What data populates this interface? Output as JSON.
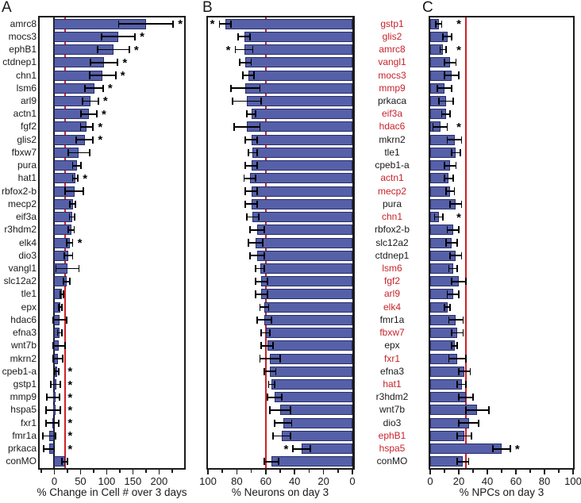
{
  "figure_title": "",
  "sig_marker": "*",
  "colors": {
    "bar_fill": "#5560a8",
    "bar_border": "#272c68",
    "ref_line": "#cc2228",
    "zero_line": "#1a1a1a",
    "red_label": "#c8232c",
    "black_label": "#1a1a1a"
  },
  "chart_data": [
    {
      "panel": "A",
      "type": "bar",
      "orientation": "horizontal",
      "xlabel": "% Change in Cell # over 3 days",
      "xlim": [
        -28,
        248
      ],
      "ticks": [
        0,
        50,
        100,
        150,
        200
      ],
      "minor_ticks": [
        -25,
        25,
        75,
        125,
        175,
        225
      ],
      "ref_line": 20,
      "zero_line": 0,
      "star_min": 30,
      "grid": false,
      "rows": [
        {
          "label": "amrc8",
          "red": false,
          "value": 175,
          "err": 52,
          "sig": true
        },
        {
          "label": "mocs3",
          "red": false,
          "value": 122,
          "err": 32,
          "sig": true
        },
        {
          "label": "ephB1",
          "red": false,
          "value": 113,
          "err": 30,
          "sig": true
        },
        {
          "label": "ctdnep1",
          "red": false,
          "value": 95,
          "err": 26,
          "sig": true
        },
        {
          "label": "chn1",
          "red": false,
          "value": 92,
          "err": 25,
          "sig": true
        },
        {
          "label": "lsm6",
          "red": false,
          "value": 76,
          "err": 17,
          "sig": true
        },
        {
          "label": "arl9",
          "red": false,
          "value": 69,
          "err": 15,
          "sig": true
        },
        {
          "label": "actn1",
          "red": false,
          "value": 66,
          "err": 15,
          "sig": true
        },
        {
          "label": "fgf2",
          "red": false,
          "value": 62,
          "err": 12,
          "sig": true
        },
        {
          "label": "glis2",
          "red": false,
          "value": 58,
          "err": 16,
          "sig": true
        },
        {
          "label": "fbxw7",
          "red": false,
          "value": 47,
          "err": 20,
          "sig": false
        },
        {
          "label": "pura",
          "red": false,
          "value": 43,
          "err": 8,
          "sig": false
        },
        {
          "label": "hat1",
          "red": false,
          "value": 40,
          "err": 5,
          "sig": true
        },
        {
          "label": "rbfox2-b",
          "red": false,
          "value": 38,
          "err": 17,
          "sig": false
        },
        {
          "label": "mecp2",
          "red": false,
          "value": 35,
          "err": 5,
          "sig": false
        },
        {
          "label": "eif3a",
          "red": false,
          "value": 34,
          "err": 5,
          "sig": false
        },
        {
          "label": "r3hdm2",
          "red": false,
          "value": 32,
          "err": 6,
          "sig": false
        },
        {
          "label": "elk4",
          "red": false,
          "value": 29,
          "err": 6,
          "sig": true
        },
        {
          "label": "dio3",
          "red": false,
          "value": 27,
          "err": 8,
          "sig": false
        },
        {
          "label": "vangl1",
          "red": false,
          "value": 25,
          "err": 22,
          "sig": false
        },
        {
          "label": "slc12a2",
          "red": false,
          "value": 24,
          "err": 6,
          "sig": false
        },
        {
          "label": "tle1",
          "red": false,
          "value": 15,
          "err": 3,
          "sig": false
        },
        {
          "label": "epx",
          "red": false,
          "value": 12,
          "err": 3,
          "sig": false
        },
        {
          "label": "hdac6",
          "red": false,
          "value": 10,
          "err": 13,
          "sig": false
        },
        {
          "label": "efna3",
          "red": false,
          "value": 10,
          "err": 4,
          "sig": false
        },
        {
          "label": "wnt7b",
          "red": false,
          "value": 9,
          "err": 11,
          "sig": false
        },
        {
          "label": "mkrn2",
          "red": false,
          "value": 7,
          "err": 9,
          "sig": false
        },
        {
          "label": "cpeb1-a",
          "red": false,
          "value": 5,
          "err": 4,
          "sig": true
        },
        {
          "label": "gstp1",
          "red": false,
          "value": 2,
          "err": 9,
          "sig": true
        },
        {
          "label": "mmp9",
          "red": false,
          "value": -2,
          "err": 12,
          "sig": true
        },
        {
          "label": "hspa5",
          "red": false,
          "value": -2,
          "err": 14,
          "sig": true
        },
        {
          "label": "fxr1",
          "red": false,
          "value": -4,
          "err": 12,
          "sig": true
        },
        {
          "label": "fmr1a",
          "red": false,
          "value": -10,
          "err": 12,
          "sig": true
        },
        {
          "label": "prkaca",
          "red": false,
          "value": -10,
          "err": 10,
          "sig": true
        },
        {
          "label": "conMO",
          "red": false,
          "value": 20,
          "err": 5,
          "sig": false
        }
      ]
    },
    {
      "panel": "B",
      "type": "bar",
      "orientation": "horizontal",
      "xlabel": "% Neurons on day 3",
      "xlim": [
        100,
        0
      ],
      "ticks": [
        100,
        80,
        60,
        40,
        20,
        0
      ],
      "minor_ticks": [
        90,
        70,
        50,
        30,
        10
      ],
      "ref_line": 60,
      "grid": false,
      "rows": [
        {
          "label": "gstp1",
          "red": true,
          "value": 88,
          "err": 4,
          "sig": true
        },
        {
          "label": "glis2",
          "red": true,
          "value": 75,
          "err": 4,
          "sig": false
        },
        {
          "label": "amrc8",
          "red": true,
          "value": 75,
          "err": 6,
          "sig": true
        },
        {
          "label": "vangl1",
          "red": true,
          "value": 74,
          "err": 4,
          "sig": false
        },
        {
          "label": "mocs3",
          "red": true,
          "value": 72,
          "err": 4,
          "sig": false
        },
        {
          "label": "mmp9",
          "red": true,
          "value": 74,
          "err": 10,
          "sig": false
        },
        {
          "label": "prkaca",
          "red": false,
          "value": 73,
          "err": 10,
          "sig": false
        },
        {
          "label": "eif3a",
          "red": true,
          "value": 70,
          "err": 3,
          "sig": false
        },
        {
          "label": "hdac6",
          "red": true,
          "value": 73,
          "err": 9,
          "sig": false
        },
        {
          "label": "mkrn2",
          "red": false,
          "value": 70,
          "err": 4,
          "sig": false
        },
        {
          "label": "tle1",
          "red": false,
          "value": 69,
          "err": 3,
          "sig": false
        },
        {
          "label": "cpeb1-a",
          "red": false,
          "value": 70,
          "err": 4,
          "sig": false
        },
        {
          "label": "actn1",
          "red": true,
          "value": 71,
          "err": 4,
          "sig": false
        },
        {
          "label": "mecp2",
          "red": true,
          "value": 70,
          "err": 4,
          "sig": false
        },
        {
          "label": "pura",
          "red": false,
          "value": 70,
          "err": 4,
          "sig": false
        },
        {
          "label": "chn1",
          "red": true,
          "value": 69,
          "err": 4,
          "sig": false
        },
        {
          "label": "rbfox2-b",
          "red": false,
          "value": 66,
          "err": 5,
          "sig": false
        },
        {
          "label": "slc12a2",
          "red": false,
          "value": 67,
          "err": 5,
          "sig": false
        },
        {
          "label": "ctdnep1",
          "red": false,
          "value": 66,
          "err": 5,
          "sig": false
        },
        {
          "label": "lsm6",
          "red": true,
          "value": 64,
          "err": 3,
          "sig": false
        },
        {
          "label": "fgf2",
          "red": true,
          "value": 63,
          "err": 4,
          "sig": false
        },
        {
          "label": "arl9",
          "red": true,
          "value": 63,
          "err": 4,
          "sig": false
        },
        {
          "label": "elk4",
          "red": true,
          "value": 61,
          "err": 3,
          "sig": false
        },
        {
          "label": "fmr1a",
          "red": false,
          "value": 61,
          "err": 5,
          "sig": false
        },
        {
          "label": "fbxw7",
          "red": true,
          "value": 60,
          "err": 3,
          "sig": false
        },
        {
          "label": "epx",
          "red": false,
          "value": 59,
          "err": 4,
          "sig": false
        },
        {
          "label": "fxr1",
          "red": true,
          "value": 57,
          "err": 7,
          "sig": false
        },
        {
          "label": "efna3",
          "red": false,
          "value": 57,
          "err": 4,
          "sig": false
        },
        {
          "label": "hat1",
          "red": true,
          "value": 56,
          "err": 2,
          "sig": false
        },
        {
          "label": "r3hdm2",
          "red": false,
          "value": 54,
          "err": 5,
          "sig": false
        },
        {
          "label": "wnt7b",
          "red": false,
          "value": 50,
          "err": 7,
          "sig": false
        },
        {
          "label": "dio3",
          "red": false,
          "value": 48,
          "err": 6,
          "sig": false
        },
        {
          "label": "ephB1",
          "red": true,
          "value": 49,
          "err": 6,
          "sig": false
        },
        {
          "label": "hspa5",
          "red": true,
          "value": 35,
          "err": 6,
          "sig": true
        },
        {
          "label": "conMO",
          "red": false,
          "value": 56,
          "err": 5,
          "sig": false
        }
      ]
    },
    {
      "panel": "C",
      "type": "bar",
      "orientation": "horizontal",
      "xlabel": "% NPCs on day 3",
      "xlim": [
        0,
        100
      ],
      "ticks": [
        0,
        20,
        40,
        60,
        80,
        100
      ],
      "minor_ticks": [
        10,
        30,
        50,
        70,
        90
      ],
      "ref_line": 25,
      "star_min": 20,
      "grid": false,
      "rows": [
        {
          "label": "gstp1",
          "red": true,
          "value": 6,
          "err": 2,
          "sig": true
        },
        {
          "label": "glis2",
          "red": true,
          "value": 12,
          "err": 3,
          "sig": false
        },
        {
          "label": "amrc8",
          "red": true,
          "value": 9,
          "err": 2,
          "sig": true
        },
        {
          "label": "vangl1",
          "red": true,
          "value": 14,
          "err": 4,
          "sig": false
        },
        {
          "label": "mocs3",
          "red": true,
          "value": 15,
          "err": 5,
          "sig": false
        },
        {
          "label": "mmp9",
          "red": true,
          "value": 10,
          "err": 5,
          "sig": false
        },
        {
          "label": "prkaca",
          "red": false,
          "value": 11,
          "err": 5,
          "sig": false
        },
        {
          "label": "eif3a",
          "red": true,
          "value": 11,
          "err": 3,
          "sig": false
        },
        {
          "label": "hdac6",
          "red": true,
          "value": 7,
          "err": 5,
          "sig": true
        },
        {
          "label": "mkrn2",
          "red": false,
          "value": 17,
          "err": 5,
          "sig": false
        },
        {
          "label": "tle1",
          "red": false,
          "value": 18,
          "err": 3,
          "sig": false
        },
        {
          "label": "cpeb1-a",
          "red": false,
          "value": 14,
          "err": 4,
          "sig": false
        },
        {
          "label": "actn1",
          "red": true,
          "value": 13,
          "err": 3,
          "sig": false
        },
        {
          "label": "mecp2",
          "red": true,
          "value": 14,
          "err": 3,
          "sig": false
        },
        {
          "label": "pura",
          "red": false,
          "value": 18,
          "err": 4,
          "sig": false
        },
        {
          "label": "chn1",
          "red": true,
          "value": 6,
          "err": 3,
          "sig": true
        },
        {
          "label": "rbfox2-b",
          "red": false,
          "value": 16,
          "err": 4,
          "sig": false
        },
        {
          "label": "slc12a2",
          "red": false,
          "value": 15,
          "err": 4,
          "sig": false
        },
        {
          "label": "ctdnep1",
          "red": false,
          "value": 18,
          "err": 4,
          "sig": false
        },
        {
          "label": "lsm6",
          "red": true,
          "value": 16,
          "err": 3,
          "sig": false
        },
        {
          "label": "fgf2",
          "red": true,
          "value": 20,
          "err": 5,
          "sig": false
        },
        {
          "label": "arl9",
          "red": true,
          "value": 16,
          "err": 4,
          "sig": false
        },
        {
          "label": "elk4",
          "red": true,
          "value": 12,
          "err": 2,
          "sig": false
        },
        {
          "label": "fmr1a",
          "red": false,
          "value": 18,
          "err": 5,
          "sig": false
        },
        {
          "label": "fbxw7",
          "red": true,
          "value": 19,
          "err": 4,
          "sig": false
        },
        {
          "label": "epx",
          "red": false,
          "value": 17,
          "err": 2,
          "sig": false
        },
        {
          "label": "fxr1",
          "red": true,
          "value": 19,
          "err": 6,
          "sig": false
        },
        {
          "label": "efna3",
          "red": false,
          "value": 24,
          "err": 4,
          "sig": false
        },
        {
          "label": "hat1",
          "red": true,
          "value": 22,
          "err": 3,
          "sig": false
        },
        {
          "label": "r3hdm2",
          "red": false,
          "value": 25,
          "err": 5,
          "sig": false
        },
        {
          "label": "wnt7b",
          "red": false,
          "value": 33,
          "err": 8,
          "sig": false
        },
        {
          "label": "dio3",
          "red": false,
          "value": 27,
          "err": 7,
          "sig": false
        },
        {
          "label": "ephB1",
          "red": true,
          "value": 24,
          "err": 5,
          "sig": false
        },
        {
          "label": "hspa5",
          "red": true,
          "value": 50,
          "err": 6,
          "sig": true
        },
        {
          "label": "conMO",
          "red": false,
          "value": 23,
          "err": 4,
          "sig": false
        }
      ]
    }
  ]
}
